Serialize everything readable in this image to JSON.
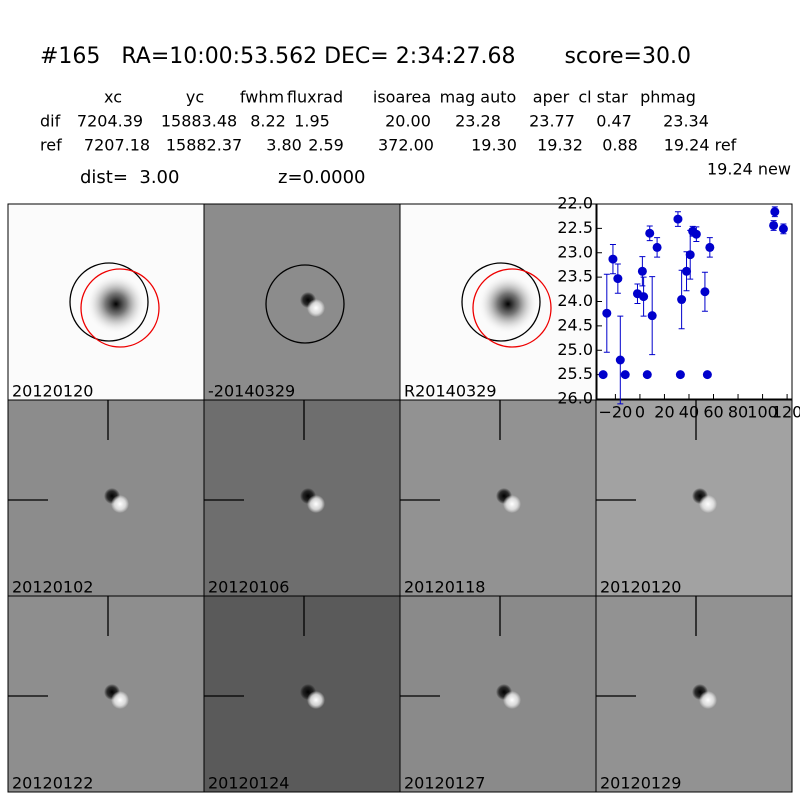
{
  "header": {
    "title": "#165   RA=10:00:53.562 DEC= 2:34:27.68       score=30.0"
  },
  "table": {
    "columns": [
      "xc",
      "yc",
      "fwhm",
      "fluxrad",
      "isoarea",
      "mag auto",
      "aper",
      "cl star",
      "phmag"
    ],
    "rows": [
      [
        "dif",
        "7204.39",
        "15883.48",
        "8.22",
        "1.95",
        "20.00",
        "23.28",
        "23.77",
        "0.47",
        "23.34"
      ],
      [
        "ref",
        "7207.18",
        "15882.37",
        "3.80",
        "2.59",
        "372.00",
        "19.30",
        "19.32",
        "0.88",
        "19.24 ref"
      ]
    ],
    "extra": "19.24 new",
    "dist": "dist=  3.00",
    "z": "z=0.0000"
  },
  "panels": [
    {
      "label": "20120120"
    },
    {
      "label": "-20140329"
    },
    {
      "label": "R20140329"
    },
    {
      "label": "20120102"
    },
    {
      "label": "20120106"
    },
    {
      "label": "20120118"
    },
    {
      "label": "20120120",
      "color": "#ff0000"
    },
    {
      "label": "20120122"
    },
    {
      "label": "20120124"
    },
    {
      "label": "20120127"
    },
    {
      "label": "20120129"
    }
  ],
  "chart_data": {
    "type": "scatter",
    "color": "#0000cc",
    "x": [
      -30,
      -27,
      -22,
      -18,
      -16,
      -12,
      -2,
      2,
      3,
      6,
      8,
      10,
      14,
      31,
      33,
      34,
      38,
      41,
      43,
      46,
      53,
      55,
      57,
      109,
      110,
      117
    ],
    "values": [
      25.5,
      24.24,
      23.13,
      23.53,
      25.2,
      25.5,
      23.84,
      23.38,
      23.9,
      25.5,
      22.6,
      24.29,
      22.89,
      22.31,
      25.5,
      23.96,
      23.38,
      23.04,
      22.56,
      22.62,
      23.8,
      25.5,
      22.89,
      22.44,
      22.16,
      22.51
    ],
    "errors": [
      0.05,
      0.8,
      0.3,
      0.3,
      0.9,
      0.05,
      0.2,
      0.3,
      0.4,
      0.05,
      0.15,
      0.8,
      0.2,
      0.15,
      0.05,
      0.6,
      0.4,
      0.5,
      0.1,
      0.15,
      0.4,
      0.05,
      0.2,
      0.1,
      0.1,
      0.1
    ],
    "xlim": [
      -35,
      124
    ],
    "ylim": [
      26,
      22
    ],
    "xticks": [
      {
        "value": -20,
        "label": "−20"
      },
      0,
      20,
      40,
      60,
      80,
      100,
      120
    ],
    "yticks": [
      {
        "value": 22,
        "label": "22.0"
      },
      {
        "value": 22.5,
        "label": "22.5"
      },
      {
        "value": 23,
        "label": "23.0"
      },
      {
        "value": 23.5,
        "label": "23.5"
      },
      {
        "value": 24,
        "label": "24.0"
      },
      {
        "value": 24.5,
        "label": "24.5"
      },
      {
        "value": 25,
        "label": "25.0"
      },
      {
        "value": 25.5,
        "label": "25.5"
      },
      {
        "value": 26,
        "label": "26.0"
      }
    ]
  }
}
